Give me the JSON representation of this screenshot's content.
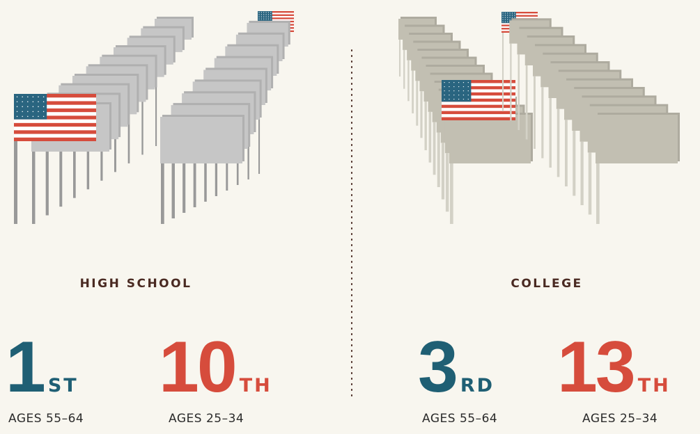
{
  "sections": [
    {
      "title": "HIGH SCHOOL",
      "ranks": [
        {
          "number": 1,
          "suffix": "ST",
          "label": "AGES 55–64"
        },
        {
          "number": 10,
          "suffix": "TH",
          "label": "AGES 25–34"
        }
      ]
    },
    {
      "title": "COLLEGE",
      "ranks": [
        {
          "number": 3,
          "suffix": "RD",
          "label": "AGES 55–64"
        },
        {
          "number": 13,
          "suffix": "TH",
          "label": "AGES 25–34"
        }
      ]
    }
  ]
}
